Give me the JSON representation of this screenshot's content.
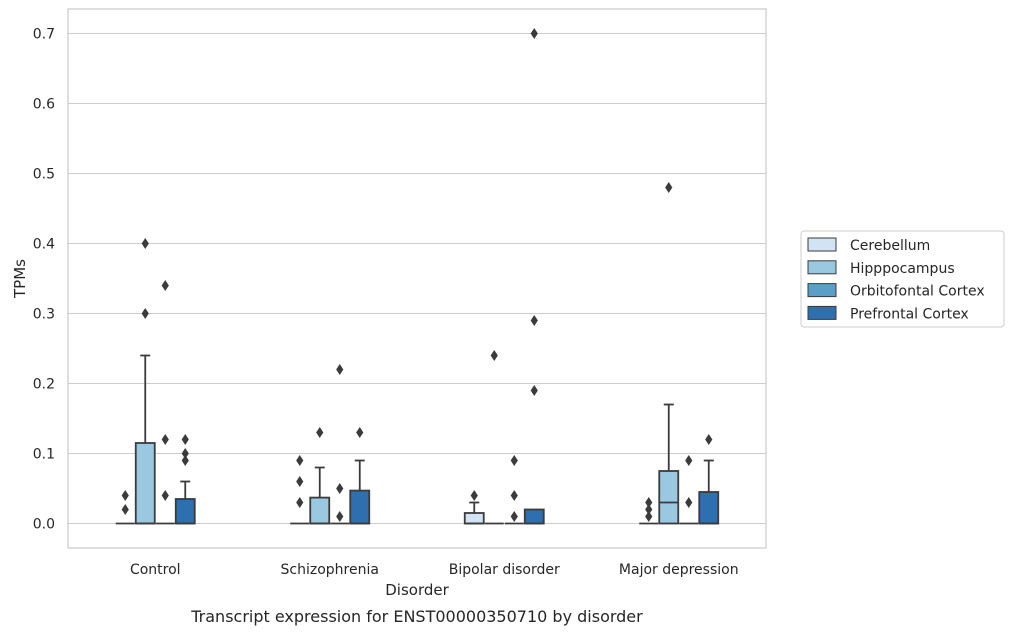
{
  "caption": "Transcript expression for ENST00000350710 by disorder",
  "chart_data": {
    "type": "box",
    "xlabel": "Disorder",
    "ylabel": "TPMs",
    "ylim": [
      -0.035,
      0.735
    ],
    "yticks": [
      "0.0",
      "0.1",
      "0.2",
      "0.3",
      "0.4",
      "0.5",
      "0.6",
      "0.7"
    ],
    "ytick_values": [
      0,
      0.1,
      0.2,
      0.3,
      0.4,
      0.5,
      0.6,
      0.7
    ],
    "grid": "horizontal",
    "legend_position": "right",
    "categories": [
      "Control",
      "Schizophrenia",
      "Bipolar disorder",
      "Major depression"
    ],
    "series": [
      {
        "name": "Cerebellum",
        "color": "#d2e3f3",
        "boxes": [
          {
            "q1": 0,
            "median": 0,
            "q3": 0,
            "whisker_low": 0,
            "whisker_high": 0,
            "outliers": [
              0.02,
              0.04
            ]
          },
          {
            "q1": 0,
            "median": 0,
            "q3": 0,
            "whisker_low": 0,
            "whisker_high": 0,
            "outliers": [
              0.03,
              0.06,
              0.09
            ]
          },
          {
            "q1": 0,
            "median": 0,
            "q3": 0.015,
            "whisker_low": 0,
            "whisker_high": 0.03,
            "outliers": [
              0.04
            ]
          },
          {
            "q1": 0,
            "median": 0,
            "q3": 0,
            "whisker_low": 0,
            "whisker_high": 0,
            "outliers": [
              0.01,
              0.02,
              0.03
            ]
          }
        ]
      },
      {
        "name": "Hipppocampus",
        "color": "#9ac8e0",
        "boxes": [
          {
            "q1": 0,
            "median": 0,
            "q3": 0.115,
            "whisker_low": 0,
            "whisker_high": 0.24,
            "outliers": [
              0.3,
              0.4
            ]
          },
          {
            "q1": 0,
            "median": 0,
            "q3": 0.037,
            "whisker_low": 0,
            "whisker_high": 0.08,
            "outliers": [
              0.13
            ]
          },
          {
            "q1": 0,
            "median": 0,
            "q3": 0,
            "whisker_low": 0,
            "whisker_high": 0,
            "outliers": [
              0.24
            ]
          },
          {
            "q1": 0,
            "median": 0.03,
            "q3": 0.075,
            "whisker_low": 0,
            "whisker_high": 0.17,
            "outliers": [
              0.48
            ]
          }
        ]
      },
      {
        "name": "Orbitofontal Cortex",
        "color": "#5a9ec9",
        "boxes": [
          {
            "q1": 0,
            "median": 0,
            "q3": 0,
            "whisker_low": 0,
            "whisker_high": 0,
            "outliers": [
              0.04,
              0.12,
              0.34
            ]
          },
          {
            "q1": 0,
            "median": 0,
            "q3": 0,
            "whisker_low": 0,
            "whisker_high": 0,
            "outliers": [
              0.01,
              0.05,
              0.22
            ]
          },
          {
            "q1": 0,
            "median": 0,
            "q3": 0,
            "whisker_low": 0,
            "whisker_high": 0,
            "outliers": [
              0.01,
              0.04,
              0.09
            ]
          },
          {
            "q1": 0,
            "median": 0,
            "q3": 0,
            "whisker_low": 0,
            "whisker_high": 0,
            "outliers": [
              0.03,
              0.09
            ]
          }
        ]
      },
      {
        "name": "Prefrontal Cortex",
        "color": "#2d6faf",
        "boxes": [
          {
            "q1": 0,
            "median": 0,
            "q3": 0.035,
            "whisker_low": 0,
            "whisker_high": 0.06,
            "outliers": [
              0.09,
              0.1,
              0.12
            ]
          },
          {
            "q1": 0,
            "median": 0,
            "q3": 0.047,
            "whisker_low": 0,
            "whisker_high": 0.09,
            "outliers": [
              0.13
            ]
          },
          {
            "q1": 0,
            "median": 0,
            "q3": 0.02,
            "whisker_low": 0,
            "whisker_high": 0.02,
            "outliers": [
              0.19,
              0.29,
              0.7
            ]
          },
          {
            "q1": 0,
            "median": 0,
            "q3": 0.045,
            "whisker_low": 0,
            "whisker_high": 0.09,
            "outliers": [
              0.12
            ]
          }
        ]
      }
    ]
  }
}
